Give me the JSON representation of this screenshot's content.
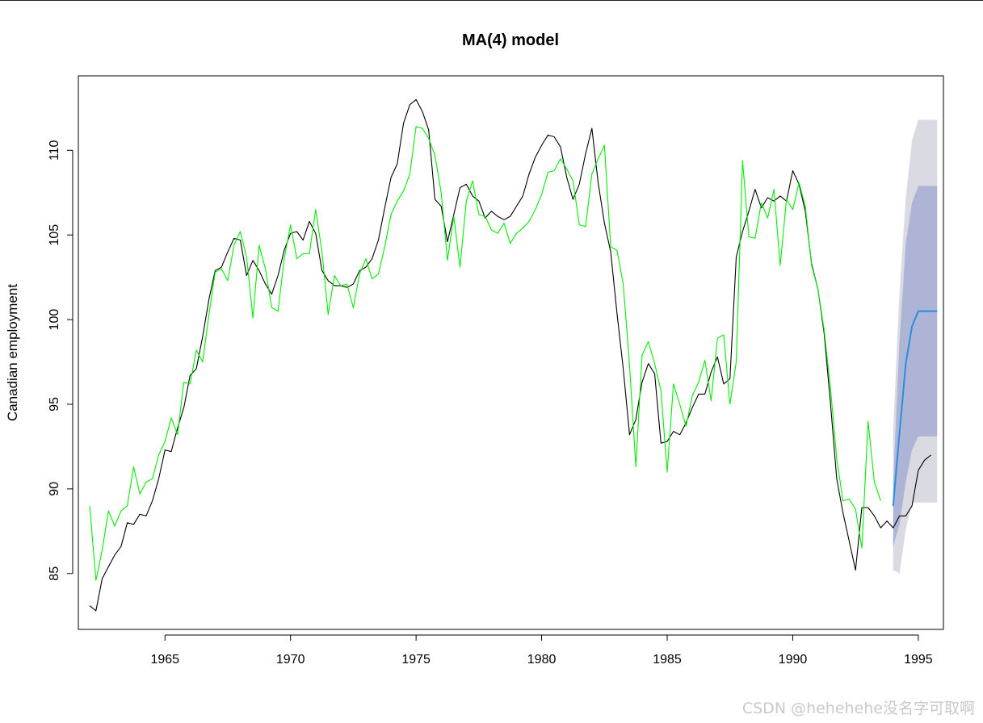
{
  "chart_data": {
    "type": "line",
    "title": "MA(4) model",
    "xlabel": "",
    "ylabel": "Canadian employment",
    "xlim": [
      1961.55,
      1996.0
    ],
    "ylim": [
      81.7,
      114.4
    ],
    "x_ticks": [
      1965,
      1970,
      1975,
      1980,
      1985,
      1990,
      1995
    ],
    "y_ticks": [
      85,
      90,
      95,
      100,
      105,
      110
    ],
    "grid": false,
    "colors": {
      "observed": "#000000",
      "fitted": "#00ee00",
      "forecast": "#2a8ee0",
      "band_80": "#adb4d6",
      "band_95": "#dadae2"
    },
    "series": [
      {
        "role": "observed",
        "start": 1962.0,
        "frequency": 4,
        "values": [
          83.1,
          82.8,
          84.7,
          85.4,
          86.1,
          86.6,
          88.0,
          87.9,
          88.5,
          88.4,
          89.3,
          90.6,
          92.3,
          92.2,
          93.6,
          94.8,
          96.7,
          97.1,
          99.0,
          101.2,
          102.9,
          103.1,
          104.0,
          104.8,
          104.7,
          102.6,
          103.5,
          102.9,
          102.1,
          101.5,
          102.6,
          104.1,
          105.1,
          105.2,
          104.7,
          105.8,
          105.1,
          102.9,
          102.3,
          102.0,
          102.0,
          101.9,
          102.1,
          102.9,
          103.1,
          103.6,
          104.7,
          106.6,
          108.4,
          109.2,
          111.6,
          112.7,
          113.0,
          112.3,
          111.2,
          107.1,
          106.7,
          104.6,
          106.2,
          107.8,
          108.0,
          107.3,
          107.0,
          106.0,
          106.4,
          106.1,
          105.9,
          106.1,
          106.7,
          107.3,
          108.6,
          109.6,
          110.3,
          110.9,
          110.8,
          110.2,
          108.4,
          107.1,
          108.0,
          109.8,
          111.3,
          108.1,
          105.7,
          104.0,
          100.4,
          97.1,
          93.2,
          94.1,
          96.3,
          97.4,
          96.8,
          92.7,
          92.8,
          93.4,
          93.2,
          93.9,
          94.8,
          95.6,
          95.6,
          96.9,
          97.8,
          96.2,
          96.5,
          103.7,
          105.2,
          106.4,
          107.7,
          106.6,
          107.2,
          107.0,
          107.3,
          107.0,
          108.8,
          108.0,
          106.4,
          103.3,
          101.8,
          99.2,
          95.1,
          90.6,
          88.6,
          86.9,
          85.2,
          88.9,
          88.9,
          88.4,
          87.7,
          88.1,
          87.7,
          88.4,
          88.4,
          89.0,
          91.1,
          91.7,
          92.0
        ]
      },
      {
        "role": "fitted",
        "start": 1962.0,
        "frequency": 4,
        "values": [
          89.0,
          84.6,
          86.4,
          88.7,
          87.8,
          88.7,
          89.0,
          91.3,
          89.7,
          90.4,
          90.6,
          92.0,
          92.8,
          94.2,
          93.2,
          96.3,
          96.2,
          98.2,
          97.5,
          100.3,
          102.8,
          103.0,
          102.3,
          104.4,
          105.2,
          103.7,
          100.1,
          104.4,
          103.0,
          100.7,
          100.5,
          103.6,
          105.6,
          103.6,
          103.9,
          103.9,
          106.5,
          104.0,
          100.3,
          102.6,
          102.0,
          102.1,
          100.7,
          102.7,
          103.6,
          102.4,
          102.7,
          104.3,
          106.2,
          107.0,
          107.6,
          108.6,
          111.4,
          111.3,
          110.7,
          109.7,
          107.5,
          103.5,
          106.1,
          103.1,
          107.0,
          108.2,
          106.2,
          106.1,
          105.3,
          105.1,
          105.7,
          104.5,
          105.1,
          105.4,
          105.8,
          106.5,
          107.4,
          108.7,
          108.8,
          109.5,
          108.9,
          108.2,
          105.6,
          105.5,
          108.6,
          109.5,
          110.3,
          104.3,
          104.1,
          102.1,
          97.3,
          91.3,
          97.9,
          98.7,
          97.4,
          95.8,
          91.0,
          96.2,
          95.0,
          93.7,
          95.5,
          96.3,
          97.6,
          95.2,
          98.9,
          99.1,
          95.0,
          97.5,
          109.4,
          104.9,
          104.8,
          106.9,
          106.0,
          107.7,
          103.2,
          107.1,
          106.5,
          108.1,
          106.7,
          103.2,
          101.8,
          99.4,
          96.0,
          91.8,
          89.3,
          89.4,
          88.8,
          86.5,
          94.0,
          90.4,
          89.3
        ]
      },
      {
        "role": "forecast",
        "start": 1994.0,
        "frequency": 4,
        "values": [
          89.0,
          93.3,
          97.4,
          99.6,
          100.5,
          100.5,
          100.5,
          100.5
        ]
      }
    ],
    "forecast_intervals": {
      "start": 1994.0,
      "frequency": 4,
      "lo80": [
        86.6,
        87.9,
        90.4,
        92.3,
        93.1,
        93.1,
        93.1,
        93.1
      ],
      "hi80": [
        90.4,
        98.7,
        104.5,
        106.9,
        107.9,
        107.9,
        107.9,
        107.9
      ],
      "lo95": [
        85.2,
        85.0,
        87.6,
        89.2,
        89.2,
        89.2,
        89.2,
        89.2
      ],
      "hi95": [
        93.5,
        101.6,
        107.2,
        110.6,
        111.8,
        111.8,
        111.8,
        111.8
      ]
    }
  },
  "watermark": "CSDN @hehehehe没名字可取啊"
}
